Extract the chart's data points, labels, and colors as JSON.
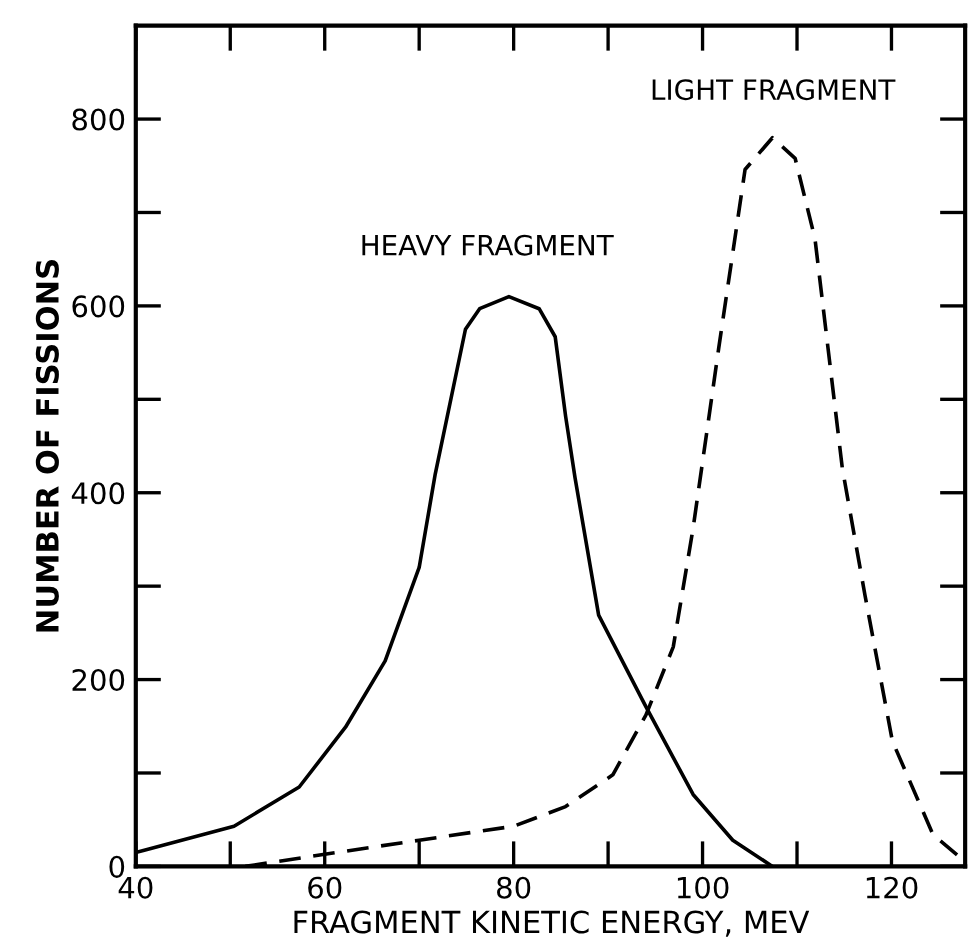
{
  "chart_data": {
    "type": "line",
    "xlabel": "FRAGMENT KINETIC ENERGY, MEV",
    "ylabel": "NUMBER OF FISSIONS",
    "xlim": [
      40,
      127.8
    ],
    "ylim": [
      0,
      900
    ],
    "xticks": [
      40,
      {
        "value": 50,
        "label": null
      },
      60,
      {
        "value": 70,
        "label": null
      },
      80,
      {
        "value": 90,
        "label": null
      },
      100,
      {
        "value": 110,
        "label": null
      },
      120
    ],
    "yticks": [
      0,
      {
        "value": 100,
        "label": null
      },
      200,
      {
        "value": 300,
        "label": null
      },
      400,
      {
        "value": 500,
        "label": null
      },
      600,
      {
        "value": 700,
        "label": null
      },
      800
    ],
    "grid": false,
    "legend": false,
    "marker": "none",
    "series": [
      {
        "color": "#000000",
        "line_style": "solid",
        "x": [
          40,
          40.8,
          50.4,
          57.3,
          62.2,
          66.4,
          70,
          71.7,
          74.9,
          76.4,
          79.5,
          82.7,
          84.4,
          85.5,
          86.5,
          89,
          94,
          99,
          103.2,
          107.4
        ],
        "values": [
          15,
          17,
          43,
          85,
          149,
          220,
          320,
          420,
          575,
          597,
          610,
          597,
          567,
          482,
          416,
          269,
          171,
          77,
          28,
          0
        ]
      },
      {
        "color": "#000000",
        "line_style": "dashed",
        "x": [
          51.6,
          60,
          70,
          80,
          85.5,
          90.5,
          94,
          96.9,
          99,
          100,
          101.7,
          104.5,
          107.4,
          109.8,
          111.9,
          114.8,
          117.2,
          120.1,
          124.4,
          127.7
        ],
        "values": [
          0,
          13,
          28,
          43,
          64,
          98,
          162,
          235,
          362,
          433,
          554,
          746,
          780,
          758,
          672,
          426,
          290,
          134,
          34,
          6
        ]
      }
    ],
    "annotations": [
      "HEAVY FRAGMENT",
      "LIGHT FRAGMENT"
    ]
  }
}
